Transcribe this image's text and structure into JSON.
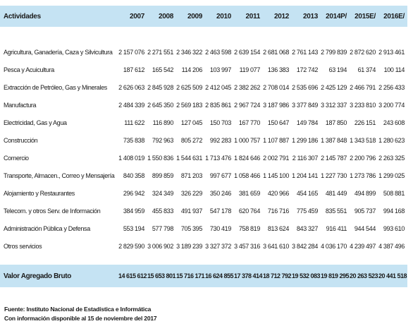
{
  "table": {
    "header_label": "Actividades",
    "years": [
      "2007",
      "2008",
      "2009",
      "2010",
      "2011",
      "2012",
      "2013",
      "2014P/",
      "2015E/",
      "2016E/"
    ],
    "rows": [
      {
        "label": "Agricultura, Ganadería, Caza y Silvicultura",
        "values": [
          "2 157 076",
          "2 271 551",
          "2 346 322",
          "2 463 598",
          "2 639 154",
          "2 681 068",
          "2 761 143",
          "2 799 839",
          "2 872 620",
          "2 913 461"
        ]
      },
      {
        "label": "Pesca y Acuicultura",
        "values": [
          "187 612",
          "165 542",
          "114 206",
          "103 997",
          "119 077",
          "136 383",
          "172 742",
          "63 194",
          "61 374",
          "100 114"
        ]
      },
      {
        "label": "Extracción de Petróleo, Gas y Minerales",
        "values": [
          "2 626 063",
          "2 845 928",
          "2 625 509",
          "2 412 045",
          "2 382 262",
          "2 708 014",
          "2 535 696",
          "2 425 129",
          "2 466 791",
          "2 256 433"
        ]
      },
      {
        "label": "Manufactura",
        "values": [
          "2 484 339",
          "2 645 350",
          "2 569 183",
          "2 835 861",
          "2 967 724",
          "3 187 986",
          "3 377 849",
          "3 312 337",
          "3 233 810",
          "3 200 774"
        ]
      },
      {
        "label": "Electricidad, Gas y Agua",
        "values": [
          "111 622",
          "116 890",
          "127 045",
          "150 703",
          "167 770",
          "150 647",
          "149 784",
          "187 850",
          "226 151",
          "243 608"
        ]
      },
      {
        "label": "Construcción",
        "values": [
          "735 838",
          "792 963",
          "805 272",
          "992 283",
          "1 000 757",
          "1 107 887",
          "1 299 186",
          "1 387 848",
          "1 343 518",
          "1 280 623"
        ]
      },
      {
        "label": "Comercio",
        "values": [
          "1 408 019",
          "1 550 836",
          "1 544 631",
          "1 713 476",
          "1 824 646",
          "2 002 791",
          "2 116 307",
          "2 145 787",
          "2 200 796",
          "2 263 325"
        ]
      },
      {
        "label": "Transporte, Almacen., Correo y Mensajería",
        "values": [
          "840 358",
          "899 859",
          "871 203",
          "997 677",
          "1 058 466",
          "1 145 100",
          "1 204 141",
          "1 227 730",
          "1 273 786",
          "1 299 025"
        ]
      },
      {
        "label": "Alojamiento y Restaurantes",
        "values": [
          "296 942",
          "324 349",
          "326 229",
          "350 246",
          "381 659",
          "420 966",
          "454 165",
          "481 449",
          "494 899",
          "508 881"
        ]
      },
      {
        "label": "Telecom. y otros Serv. de Información",
        "values": [
          "384 959",
          "455 833",
          "491 937",
          "547 178",
          "620 764",
          "716 716",
          "775 459",
          "835 551",
          "905 737",
          "994 168"
        ]
      },
      {
        "label": "Administración Pública y Defensa",
        "values": [
          "553 194",
          "577 798",
          "705 395",
          "730 419",
          "758 819",
          "813 624",
          "843 327",
          "916 411",
          "944 544",
          "993 610"
        ]
      },
      {
        "label": "Otros servicios",
        "values": [
          "2 829 590",
          "3 006 902",
          "3 189 239",
          "3 327 372",
          "3 457 316",
          "3 641 610",
          "3 842 284",
          "4 036 170",
          "4 239 497",
          "4 387 496"
        ]
      }
    ],
    "total": {
      "label": "Valor Agregado Bruto",
      "values": [
        "14 615 612",
        "15 653 801",
        "15 716 171",
        "16 624 855",
        "17 378 414",
        "18 712 792",
        "19 532 083",
        "19 819 295",
        "20 263 523",
        "20 441 518"
      ]
    }
  },
  "notes": {
    "source": "Fuente: Instituto Nacional de Estadística e Informática",
    "availability": "Con información disponible al 15 de noviembre del 2017"
  }
}
